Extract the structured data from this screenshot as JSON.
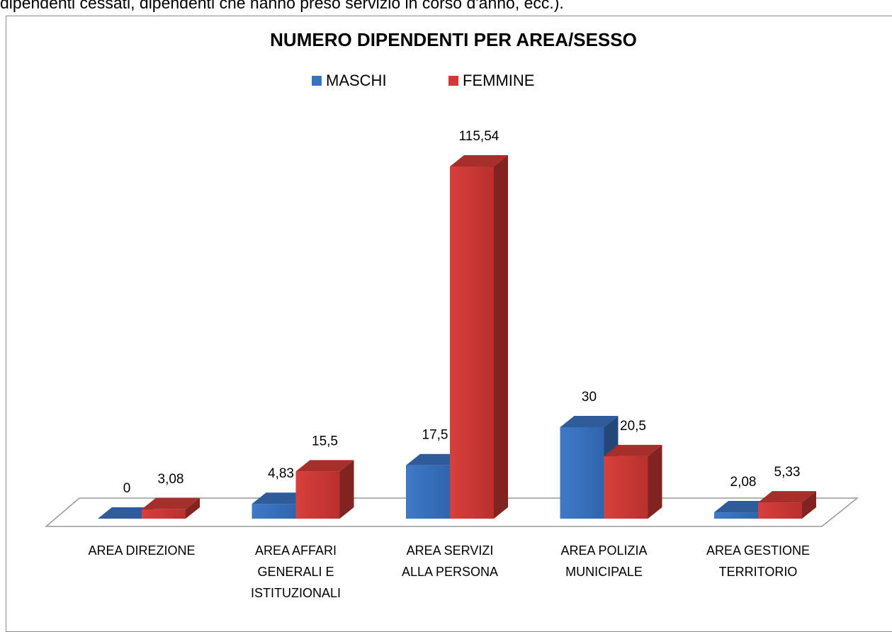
{
  "page_text": "dipendenti cessati, dipendenti che hanno preso servizio in corso d'anno, ecc.).",
  "chart_data": {
    "type": "bar3d",
    "title": "NUMERO DIPENDENTI PER AREA/SESSO",
    "categories": [
      "AREA DIREZIONE",
      "AREA AFFARI\nGENERALI E\nISTITUZIONALI",
      "AREA SERVIZI\nALLA PERSONA",
      "AREA POLIZIA\nMUNICIPALE",
      "AREA GESTIONE\nTERRITORIO"
    ],
    "series": [
      {
        "name": "MASCHI",
        "color": "#3a73c0",
        "values": [
          0,
          4.83,
          17.5,
          30,
          2.08
        ],
        "value_labels": [
          "0",
          "4,83",
          "17,5",
          "30",
          "2,08"
        ]
      },
      {
        "name": "FEMMINE",
        "color": "#d03a36",
        "values": [
          3.08,
          15.5,
          115.54,
          20.5,
          5.33
        ],
        "value_labels": [
          "3,08",
          "15,5",
          "115,54",
          "20,5",
          "5,33"
        ]
      }
    ],
    "legend": "top"
  }
}
